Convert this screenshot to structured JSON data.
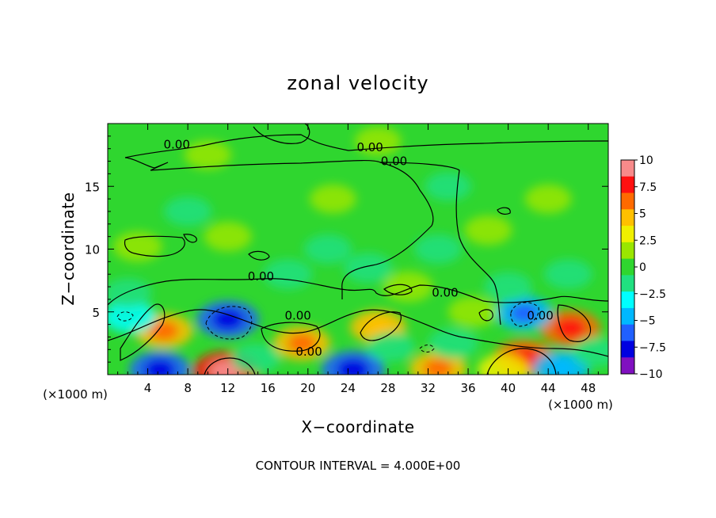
{
  "chart_data": {
    "type": "heatmap",
    "title": "zonal velocity",
    "xlabel": "X−coordinate",
    "ylabel": "Z−coordinate",
    "x_unit_left": "(×1000 m)",
    "x_unit_right": "(×1000 m)",
    "footer": "CONTOUR INTERVAL = 4.000E+00",
    "xlim": [
      0,
      50
    ],
    "ylim": [
      0,
      20
    ],
    "x_ticks": [
      4,
      8,
      12,
      16,
      20,
      24,
      28,
      32,
      36,
      40,
      44,
      48
    ],
    "x_tick_labels": [
      "4",
      "8",
      "12",
      "16",
      "20",
      "24",
      "28",
      "32",
      "36",
      "40",
      "44",
      "48"
    ],
    "y_ticks": [
      5,
      10,
      15
    ],
    "y_tick_labels": [
      "5",
      "10",
      "15"
    ],
    "colorbar": {
      "min": -10,
      "max": 10,
      "ticks": [
        10,
        7.5,
        5,
        2.5,
        0,
        -2.5,
        -5,
        -7.5,
        -10
      ],
      "tick_labels": [
        "10",
        "7.5",
        "5",
        "2.5",
        "0",
        "−2.5",
        "−5",
        "−7.5",
        "−10"
      ],
      "colors": [
        "#f78a8a",
        "#ff1010",
        "#ff6a00",
        "#ffc000",
        "#f0f000",
        "#9ae600",
        "#2fd62f",
        "#20e080",
        "#00ffff",
        "#00b8ff",
        "#2060ff",
        "#0000e0",
        "#8010c0"
      ]
    },
    "contour_labels": [
      {
        "text": "0.00",
        "x": 6.9,
        "z": 18.0
      },
      {
        "text": "0.00",
        "x": 26.2,
        "z": 17.8
      },
      {
        "text": "0.00",
        "x": 28.6,
        "z": 16.7
      },
      {
        "text": "0.00",
        "x": 15.3,
        "z": 7.5
      },
      {
        "text": "0.00",
        "x": 19.0,
        "z": 4.4
      },
      {
        "text": "0.00",
        "x": 20.1,
        "z": 1.5
      },
      {
        "text": "0.00",
        "x": 33.7,
        "z": 6.2
      },
      {
        "text": "0.00",
        "x": 43.2,
        "z": 4.4
      }
    ],
    "anomalies": [
      {
        "x": 12.0,
        "z": 4.4,
        "value": -7.5
      },
      {
        "x": 5.6,
        "z": 3.5,
        "value": 6.0
      },
      {
        "x": 2.2,
        "z": 4.6,
        "value": -3.5
      },
      {
        "x": 19.4,
        "z": 2.5,
        "value": 5.5
      },
      {
        "x": 27.0,
        "z": 3.8,
        "value": 5.0
      },
      {
        "x": 33.0,
        "z": 0.5,
        "value": 5.5
      },
      {
        "x": 11.8,
        "z": 0.3,
        "value": 9.0
      },
      {
        "x": 5.2,
        "z": 0.4,
        "value": -7.0
      },
      {
        "x": 24.5,
        "z": 0.4,
        "value": -8.0
      },
      {
        "x": 41.6,
        "z": 1.3,
        "value": 7.5
      },
      {
        "x": 46.2,
        "z": 3.7,
        "value": 7.0
      },
      {
        "x": 41.6,
        "z": 4.9,
        "value": -5.5
      },
      {
        "x": 45.3,
        "z": 0.5,
        "value": -5.0
      },
      {
        "x": 39.5,
        "z": 0.4,
        "value": 3.0
      },
      {
        "x": 36.5,
        "z": 5.0,
        "value": 2.5
      },
      {
        "x": 30.0,
        "z": 7.0,
        "value": 2.5
      },
      {
        "x": 3.0,
        "z": 10.2,
        "value": 2.0
      },
      {
        "x": 12.0,
        "z": 11.0,
        "value": 1.5
      },
      {
        "x": 38.0,
        "z": 11.5,
        "value": 1.5
      },
      {
        "x": 22.5,
        "z": 14.0,
        "value": 1.0
      },
      {
        "x": 44.0,
        "z": 14.0,
        "value": 1.0
      },
      {
        "x": 10.0,
        "z": 17.5,
        "value": 1.2
      },
      {
        "x": 27.0,
        "z": 18.6,
        "value": 1.0
      },
      {
        "x": 8.0,
        "z": 13.0,
        "value": -1.5
      },
      {
        "x": 34.0,
        "z": 15.0,
        "value": -1.0
      },
      {
        "x": 22.0,
        "z": 10.0,
        "value": -1.5
      },
      {
        "x": 33.0,
        "z": 10.0,
        "value": -1.5
      },
      {
        "x": 18.0,
        "z": 8.0,
        "value": -2.0
      },
      {
        "x": 26.0,
        "z": 8.5,
        "value": -2.0
      },
      {
        "x": 46.0,
        "z": 8.0,
        "value": -1.8
      },
      {
        "x": 40.0,
        "z": 7.0,
        "value": -1.5
      },
      {
        "x": 2.0,
        "z": 6.5,
        "value": -1.5
      },
      {
        "x": 14.8,
        "z": 1.3,
        "value": -2.0
      },
      {
        "x": 34.5,
        "z": 2.5,
        "value": -2.5
      },
      {
        "x": 28.3,
        "z": 2.2,
        "value": -1.5
      },
      {
        "x": 48.8,
        "z": 1.8,
        "value": -1.5
      }
    ]
  }
}
